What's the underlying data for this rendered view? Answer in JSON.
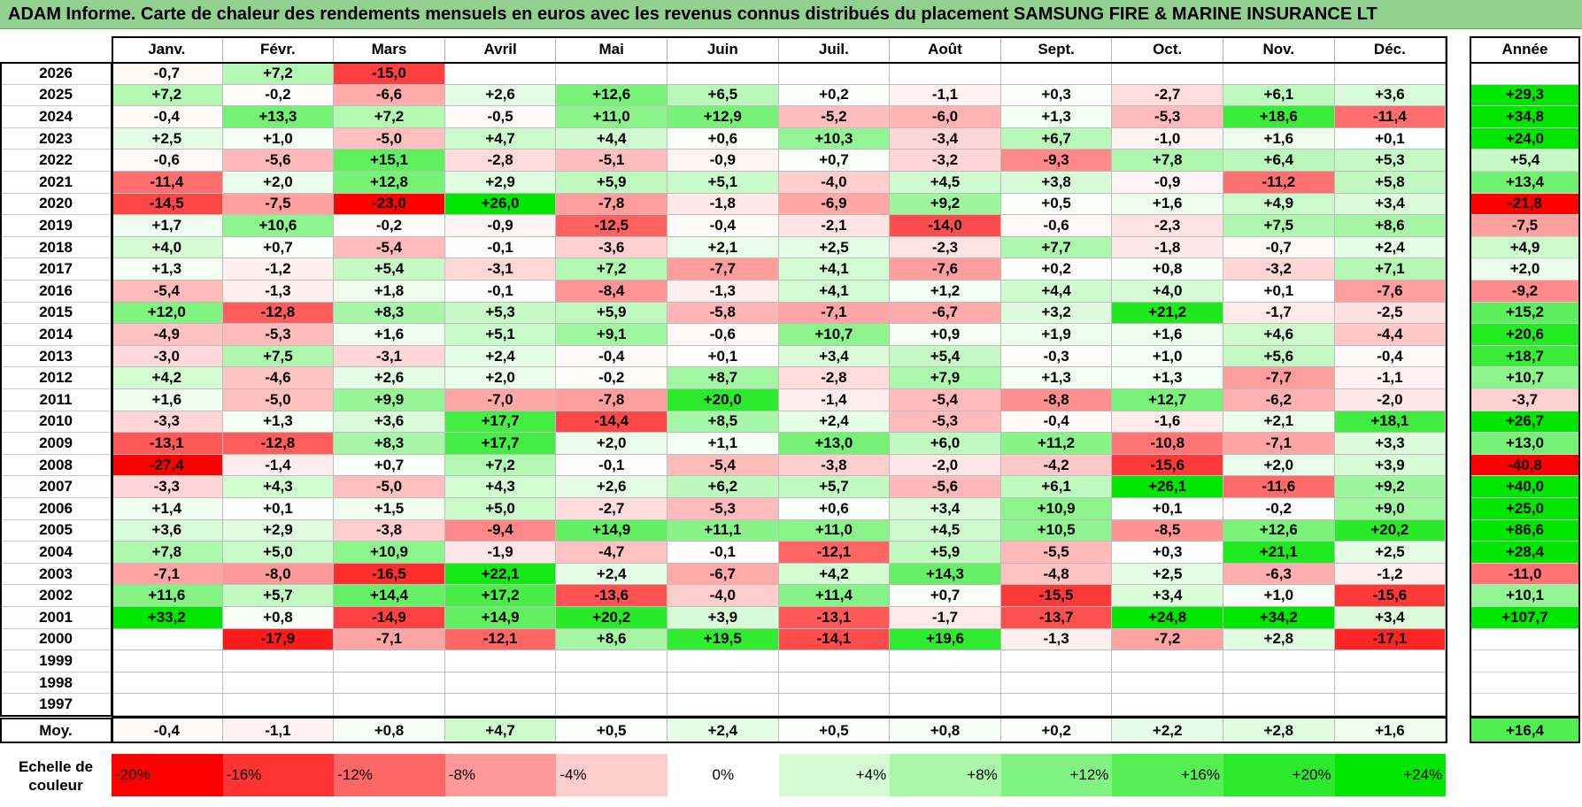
{
  "title": "ADAM Informe. Carte de chaleur des rendements mensuels en euros avec les revenus connus distribués du placement SAMSUNG FIRE & MARINE INSURANCE LT",
  "chart_data": {
    "type": "heatmap",
    "months": [
      "Janv.",
      "Févr.",
      "Mars",
      "Avril",
      "Mai",
      "Juin",
      "Juil.",
      "Août",
      "Sept.",
      "Oct.",
      "Nov.",
      "Déc."
    ],
    "year_header": "Année",
    "rows": [
      {
        "year": "2026",
        "values": [
          "-0,7",
          "+7,2",
          "-15,0",
          "",
          "",
          "",
          "",
          "",
          "",
          "",
          "",
          ""
        ],
        "annual": ""
      },
      {
        "year": "2025",
        "values": [
          "+7,2",
          "-0,2",
          "-6,6",
          "+2,6",
          "+12,6",
          "+6,5",
          "+0,2",
          "-1,1",
          "+0,3",
          "-2,7",
          "+6,1",
          "+3,6"
        ],
        "annual": "+29,3"
      },
      {
        "year": "2024",
        "values": [
          "-0,4",
          "+13,3",
          "+7,2",
          "-0,5",
          "+11,0",
          "+12,9",
          "-5,2",
          "-6,0",
          "+1,3",
          "-5,3",
          "+18,6",
          "-11,4"
        ],
        "annual": "+34,8"
      },
      {
        "year": "2023",
        "values": [
          "+2,5",
          "+1,0",
          "-5,0",
          "+4,7",
          "+4,4",
          "+0,6",
          "+10,3",
          "-3,4",
          "+6,7",
          "-1,0",
          "+1,6",
          "+0,1"
        ],
        "annual": "+24,0"
      },
      {
        "year": "2022",
        "values": [
          "-0,6",
          "-5,6",
          "+15,1",
          "-2,8",
          "-5,1",
          "-0,9",
          "+0,7",
          "-3,2",
          "-9,3",
          "+7,8",
          "+6,4",
          "+5,3"
        ],
        "annual": "+5,4"
      },
      {
        "year": "2021",
        "values": [
          "-11,4",
          "+2,0",
          "+12,8",
          "+2,9",
          "+5,9",
          "+5,1",
          "-4,0",
          "+4,5",
          "+3,8",
          "-0,9",
          "-11,2",
          "+5,8"
        ],
        "annual": "+13,4"
      },
      {
        "year": "2020",
        "values": [
          "-14,5",
          "-7,5",
          "-23,0",
          "+26,0",
          "-7,8",
          "-1,8",
          "-6,9",
          "+9,2",
          "+0,5",
          "+1,6",
          "+4,9",
          "+3,4"
        ],
        "annual": "-21,8"
      },
      {
        "year": "2019",
        "values": [
          "+1,7",
          "+10,6",
          "-0,2",
          "-0,9",
          "-12,5",
          "-0,4",
          "-2,1",
          "-14,0",
          "-0,6",
          "-2,3",
          "+7,5",
          "+8,6"
        ],
        "annual": "-7,5"
      },
      {
        "year": "2018",
        "values": [
          "+4,0",
          "+0,7",
          "-5,4",
          "-0,1",
          "-3,6",
          "+2,1",
          "+2,5",
          "-2,3",
          "+7,7",
          "-1,8",
          "-0,7",
          "+2,4"
        ],
        "annual": "+4,9"
      },
      {
        "year": "2017",
        "values": [
          "+1,3",
          "-1,2",
          "+5,4",
          "-3,1",
          "+7,2",
          "-7,7",
          "+4,1",
          "-7,6",
          "+0,2",
          "+0,8",
          "-3,2",
          "+7,1"
        ],
        "annual": "+2,0"
      },
      {
        "year": "2016",
        "values": [
          "-5,4",
          "-1,3",
          "+1,8",
          "-0,1",
          "-8,4",
          "-1,3",
          "+4,1",
          "+1,2",
          "+4,4",
          "+4,0",
          "+0,1",
          "-7,6"
        ],
        "annual": "-9,2"
      },
      {
        "year": "2015",
        "values": [
          "+12,0",
          "-12,8",
          "+8,3",
          "+5,3",
          "+5,9",
          "-5,8",
          "-7,1",
          "-6,7",
          "+3,2",
          "+21,2",
          "-1,7",
          "-2,5"
        ],
        "annual": "+15,2"
      },
      {
        "year": "2014",
        "values": [
          "-4,9",
          "-5,3",
          "+1,6",
          "+5,1",
          "+9,1",
          "-0,6",
          "+10,7",
          "+0,9",
          "+1,9",
          "+1,6",
          "+4,6",
          "-4,4"
        ],
        "annual": "+20,6"
      },
      {
        "year": "2013",
        "values": [
          "-3,0",
          "+7,5",
          "-3,1",
          "+2,4",
          "-0,4",
          "+0,1",
          "+3,4",
          "+5,4",
          "-0,3",
          "+1,0",
          "+5,6",
          "-0,4"
        ],
        "annual": "+18,7"
      },
      {
        "year": "2012",
        "values": [
          "+4,2",
          "-4,6",
          "+2,6",
          "+2,0",
          "-0,2",
          "+8,7",
          "-2,8",
          "+7,9",
          "+1,3",
          "+1,3",
          "-7,7",
          "-1,1"
        ],
        "annual": "+10,7"
      },
      {
        "year": "2011",
        "values": [
          "+1,6",
          "-5,0",
          "+9,9",
          "-7,0",
          "-7,8",
          "+20,0",
          "-1,4",
          "-5,4",
          "-8,8",
          "+12,7",
          "-6,2",
          "-2,0"
        ],
        "annual": "-3,7"
      },
      {
        "year": "2010",
        "values": [
          "-3,3",
          "+1,3",
          "+3,6",
          "+17,7",
          "-14,4",
          "+8,5",
          "+2,4",
          "-5,3",
          "-0,4",
          "-1,6",
          "+2,1",
          "+18,1"
        ],
        "annual": "+26,7"
      },
      {
        "year": "2009",
        "values": [
          "-13,1",
          "-12,8",
          "+8,3",
          "+17,7",
          "+2,0",
          "+1,1",
          "+13,0",
          "+6,0",
          "+11,2",
          "-10,8",
          "-7,1",
          "+3,3"
        ],
        "annual": "+13,0"
      },
      {
        "year": "2008",
        "values": [
          "-27,4",
          "-1,4",
          "+0,7",
          "+7,2",
          "-0,1",
          "-5,4",
          "-3,8",
          "-2,0",
          "-4,2",
          "-15,6",
          "+2,0",
          "+3,9"
        ],
        "annual": "-40,8"
      },
      {
        "year": "2007",
        "values": [
          "-3,3",
          "+4,3",
          "-5,0",
          "+4,3",
          "+2,6",
          "+6,2",
          "+5,7",
          "-5,6",
          "+6,1",
          "+26,1",
          "-11,6",
          "+9,2"
        ],
        "annual": "+40,0"
      },
      {
        "year": "2006",
        "values": [
          "+1,4",
          "+0,1",
          "+1,5",
          "+5,0",
          "-2,7",
          "-5,3",
          "+0,6",
          "+3,4",
          "+10,9",
          "+0,1",
          "-0,2",
          "+9,0"
        ],
        "annual": "+25,0"
      },
      {
        "year": "2005",
        "values": [
          "+3,6",
          "+2,9",
          "-3,8",
          "-9,4",
          "+14,9",
          "+11,1",
          "+11,0",
          "+4,5",
          "+10,5",
          "-8,5",
          "+12,6",
          "+20,2"
        ],
        "annual": "+86,6"
      },
      {
        "year": "2004",
        "values": [
          "+7,8",
          "+5,0",
          "+10,9",
          "-1,9",
          "-4,7",
          "-0,1",
          "-12,1",
          "+5,9",
          "-5,5",
          "+0,3",
          "+21,1",
          "+2,5"
        ],
        "annual": "+28,4"
      },
      {
        "year": "2003",
        "values": [
          "-7,1",
          "-8,0",
          "-16,5",
          "+22,1",
          "+2,4",
          "-6,7",
          "+4,2",
          "+14,3",
          "-4,8",
          "+2,5",
          "-6,3",
          "-1,2"
        ],
        "annual": "-11,0"
      },
      {
        "year": "2002",
        "values": [
          "+11,6",
          "+5,7",
          "+14,4",
          "+17,2",
          "-13,6",
          "-4,0",
          "+11,4",
          "+0,7",
          "-15,5",
          "+3,4",
          "+1,0",
          "-15,6"
        ],
        "annual": "+10,1"
      },
      {
        "year": "2001",
        "values": [
          "+33,2",
          "+0,8",
          "-14,9",
          "+14,9",
          "+20,2",
          "+3,9",
          "-13,1",
          "-1,7",
          "-13,7",
          "+24,8",
          "+34,2",
          "+3,4"
        ],
        "annual": "+107,7"
      },
      {
        "year": "2000",
        "values": [
          "",
          "-17,9",
          "-7,1",
          "-12,1",
          "+8,6",
          "+19,5",
          "-14,1",
          "+19,6",
          "-1,3",
          "-7,2",
          "+2,8",
          "-17,1"
        ],
        "annual": ""
      },
      {
        "year": "1999",
        "values": [
          "",
          "",
          "",
          "",
          "",
          "",
          "",
          "",
          "",
          "",
          "",
          ""
        ],
        "annual": ""
      },
      {
        "year": "1998",
        "values": [
          "",
          "",
          "",
          "",
          "",
          "",
          "",
          "",
          "",
          "",
          "",
          ""
        ],
        "annual": ""
      },
      {
        "year": "1997",
        "values": [
          "",
          "",
          "",
          "",
          "",
          "",
          "",
          "",
          "",
          "",
          "",
          ""
        ],
        "annual": ""
      }
    ],
    "average": {
      "label": "Moy.",
      "values": [
        "-0,4",
        "-1,1",
        "+0,8",
        "+4,7",
        "+0,5",
        "+2,4",
        "+0,5",
        "+0,8",
        "+0,2",
        "+2,2",
        "+2,8",
        "+1,6"
      ],
      "annual": "+16,4"
    },
    "scale": {
      "label": "Echelle de\ncouleur",
      "steps": [
        {
          "text": "-20%",
          "value": -20
        },
        {
          "text": "-16%",
          "value": -16
        },
        {
          "text": "-12%",
          "value": -12
        },
        {
          "text": "-8%",
          "value": -8
        },
        {
          "text": "-4%",
          "value": -4
        },
        {
          "text": "0%",
          "value": 0
        },
        {
          "text": "+4%",
          "value": 4
        },
        {
          "text": "+8%",
          "value": 8
        },
        {
          "text": "+12%",
          "value": 12
        },
        {
          "text": "+16%",
          "value": 16
        },
        {
          "text": "+20%",
          "value": 20
        },
        {
          "text": "+24%",
          "value": 24
        }
      ]
    },
    "colors": {
      "title_bg": "#92d08f",
      "neg_max": "#ff0000",
      "pos_max": "#00e600",
      "neutral": "#ffffff"
    }
  }
}
